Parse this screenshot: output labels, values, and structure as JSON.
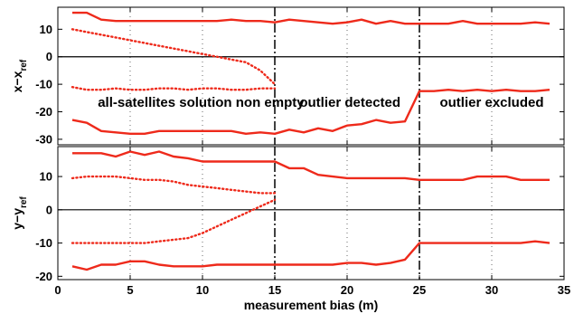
{
  "chart_data": [
    {
      "type": "line",
      "ylabel": "x−x",
      "ylabel_sub": "ref",
      "xlim": [
        0,
        35
      ],
      "ylim": [
        -32,
        18
      ],
      "yticks": [
        10,
        0,
        -10,
        -20,
        -30
      ],
      "grid_x": [
        5,
        10,
        20,
        30
      ],
      "vlines": [
        15,
        25
      ],
      "annotations": [
        {
          "text": "all-satellites solution non empty",
          "x": 9.9,
          "y": -16.5
        },
        {
          "text": "outlier detected",
          "x": 20.2,
          "y": -16.5
        },
        {
          "text": "outlier excluded",
          "x": 30.0,
          "y": -16.5
        }
      ],
      "series": [
        {
          "style": "solid",
          "x": [
            1,
            2,
            3,
            4,
            5,
            6,
            7,
            8,
            9,
            10,
            11,
            12,
            13,
            14,
            15,
            16,
            17,
            18,
            19,
            20,
            21,
            22,
            23,
            24,
            25,
            26,
            27,
            28,
            29,
            30,
            31,
            32,
            33,
            34
          ],
          "y": [
            16,
            16,
            13.5,
            13,
            13,
            13,
            13,
            13,
            13,
            13,
            13,
            13.5,
            13,
            13,
            12.5,
            13.5,
            13,
            12.5,
            12,
            12.5,
            13.5,
            12,
            13,
            12,
            12,
            12,
            12,
            13,
            12,
            12,
            12,
            12,
            12.5,
            12
          ]
        },
        {
          "style": "dotted",
          "x": [
            1,
            2,
            3,
            4,
            5,
            6,
            7,
            8,
            9,
            10,
            11,
            12,
            13,
            14,
            15
          ],
          "y": [
            10,
            9,
            8,
            7,
            6,
            5,
            4,
            3,
            2,
            1,
            0,
            -1,
            -2,
            -5,
            -10
          ]
        },
        {
          "style": "dotted",
          "x": [
            1,
            2,
            3,
            4,
            5,
            6,
            7,
            8,
            9,
            10,
            11,
            12,
            13,
            14,
            15
          ],
          "y": [
            -11,
            -12,
            -12,
            -11.5,
            -12,
            -12,
            -11.5,
            -11.5,
            -12,
            -11.5,
            -11.5,
            -12,
            -12,
            -11.5,
            -11.5
          ]
        },
        {
          "style": "solid",
          "x": [
            1,
            2,
            3,
            4,
            5,
            6,
            7,
            8,
            9,
            10,
            11,
            12,
            13,
            14,
            15,
            16,
            17,
            18,
            19,
            20,
            21,
            22,
            23,
            24,
            25,
            26,
            27,
            28,
            29,
            30,
            31,
            32,
            33,
            34
          ],
          "y": [
            -23,
            -24,
            -27,
            -27.5,
            -28,
            -28,
            -27,
            -27,
            -27,
            -27,
            -27,
            -27,
            -28,
            -27.5,
            -28,
            -26.5,
            -27.5,
            -26,
            -27,
            -25,
            -24.5,
            -23,
            -24,
            -23.5,
            -12.5,
            -12.5,
            -12,
            -12.5,
            -12,
            -12.5,
            -12,
            -12.5,
            -12.5,
            -12
          ]
        }
      ]
    },
    {
      "type": "line",
      "ylabel": "y−y",
      "ylabel_sub": "ref",
      "xlabel": "measurement bias (m)",
      "xlim": [
        0,
        35
      ],
      "xticks": [
        0,
        5,
        10,
        15,
        20,
        25,
        30,
        35
      ],
      "ylim": [
        -21,
        19
      ],
      "yticks": [
        10,
        0,
        -10,
        -20
      ],
      "grid_x": [
        5,
        10,
        20,
        30
      ],
      "vlines": [
        15,
        25
      ],
      "series": [
        {
          "style": "solid",
          "x": [
            1,
            2,
            3,
            4,
            5,
            6,
            7,
            8,
            9,
            10,
            11,
            12,
            13,
            14,
            15,
            16,
            17,
            18,
            19,
            20,
            21,
            22,
            23,
            24,
            25,
            26,
            27,
            28,
            29,
            30,
            31,
            32,
            33,
            34
          ],
          "y": [
            17,
            17,
            17,
            16,
            17.5,
            16.5,
            17.5,
            16,
            15.5,
            14.5,
            14.5,
            14.5,
            14.5,
            14.5,
            14.5,
            12.5,
            12.5,
            10.5,
            10,
            9.5,
            9.5,
            9.5,
            9.5,
            9.5,
            9,
            9,
            9,
            9,
            10,
            10,
            10,
            9,
            9,
            9
          ]
        },
        {
          "style": "dotted",
          "x": [
            1,
            2,
            3,
            4,
            5,
            6,
            7,
            8,
            9,
            10,
            11,
            12,
            13,
            14,
            15
          ],
          "y": [
            9.5,
            10,
            10,
            10,
            9.5,
            9,
            9,
            8.5,
            7.5,
            7,
            6.5,
            6,
            5.5,
            5,
            5
          ]
        },
        {
          "style": "dotted",
          "x": [
            1,
            2,
            3,
            4,
            5,
            6,
            7,
            8,
            9,
            10,
            11,
            12,
            13,
            14,
            15
          ],
          "y": [
            -10,
            -10,
            -10,
            -10,
            -10,
            -10,
            -9.5,
            -9,
            -8.5,
            -7,
            -5,
            -3,
            -1,
            1,
            3
          ]
        },
        {
          "style": "solid",
          "x": [
            1,
            2,
            3,
            4,
            5,
            6,
            7,
            8,
            9,
            10,
            11,
            12,
            13,
            14,
            15,
            16,
            17,
            18,
            19,
            20,
            21,
            22,
            23,
            24,
            25,
            26,
            27,
            28,
            29,
            30,
            31,
            32,
            33,
            34
          ],
          "y": [
            -17,
            -18,
            -16.5,
            -16.5,
            -15.5,
            -15.5,
            -16.5,
            -17,
            -17,
            -17,
            -16.5,
            -16.5,
            -16.5,
            -16.5,
            -16.5,
            -16.5,
            -16.5,
            -16.5,
            -16.5,
            -16,
            -16,
            -16.5,
            -16,
            -15,
            -10,
            -10,
            -10,
            -10,
            -10,
            -10,
            -10,
            -10,
            -9.5,
            -10
          ]
        }
      ]
    }
  ]
}
